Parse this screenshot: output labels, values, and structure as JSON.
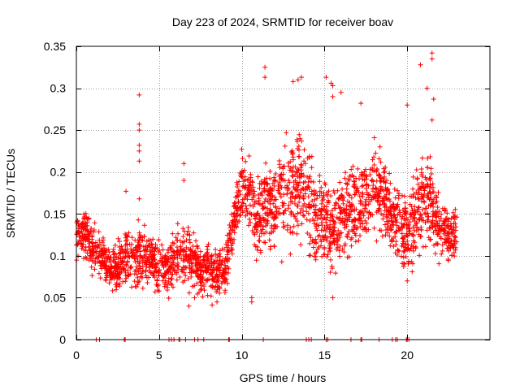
{
  "chart_data": {
    "type": "scatter",
    "title": "Day 223 of 2024, SRMTID for receiver boav",
    "xlabel": "GPS time / hours",
    "ylabel": "SRMTID / TECUs",
    "xlim": [
      0,
      25
    ],
    "ylim": [
      0,
      0.35
    ],
    "grid": true,
    "marker": "+",
    "color": "#ff0000",
    "xticks": [
      {
        "value": 0,
        "label": "0"
      },
      {
        "value": 5,
        "label": "5"
      },
      {
        "value": 10,
        "label": "10"
      },
      {
        "value": 15,
        "label": "15"
      },
      {
        "value": 20,
        "label": "20"
      }
    ],
    "yticks": [
      {
        "value": 0,
        "label": "0"
      },
      {
        "value": 0.05,
        "label": "0.05"
      },
      {
        "value": 0.1,
        "label": "0.1"
      },
      {
        "value": 0.15,
        "label": "0.15"
      },
      {
        "value": 0.2,
        "label": "0.2"
      },
      {
        "value": 0.25,
        "label": "0.25"
      },
      {
        "value": 0.3,
        "label": "0.3"
      },
      {
        "value": 0.35,
        "label": "0.35"
      }
    ],
    "envelope": {
      "x": [
        0,
        0.5,
        1.0,
        1.5,
        2.0,
        2.5,
        3.0,
        3.5,
        4.0,
        4.5,
        5.0,
        5.5,
        6.0,
        6.5,
        7.0,
        7.5,
        8.0,
        8.5,
        9.0,
        9.5,
        10.0,
        10.5,
        11.0,
        11.5,
        12.0,
        12.5,
        13.0,
        13.5,
        14.0,
        14.5,
        15.0,
        15.5,
        16.0,
        16.5,
        17.0,
        17.5,
        18.0,
        18.5,
        19.0,
        19.5,
        20.0,
        20.5,
        21.0,
        21.5,
        22.0,
        22.5,
        23.0
      ],
      "center": [
        0.12,
        0.125,
        0.11,
        0.1,
        0.085,
        0.085,
        0.1,
        0.1,
        0.1,
        0.095,
        0.09,
        0.085,
        0.1,
        0.1,
        0.095,
        0.08,
        0.085,
        0.08,
        0.085,
        0.14,
        0.185,
        0.17,
        0.14,
        0.17,
        0.16,
        0.17,
        0.185,
        0.19,
        0.17,
        0.14,
        0.14,
        0.13,
        0.145,
        0.16,
        0.16,
        0.165,
        0.18,
        0.17,
        0.15,
        0.14,
        0.12,
        0.15,
        0.17,
        0.16,
        0.13,
        0.12,
        0.13
      ],
      "spread": [
        0.02,
        0.02,
        0.025,
        0.025,
        0.02,
        0.02,
        0.03,
        0.03,
        0.03,
        0.025,
        0.025,
        0.025,
        0.03,
        0.025,
        0.03,
        0.025,
        0.025,
        0.025,
        0.025,
        0.025,
        0.03,
        0.03,
        0.04,
        0.045,
        0.04,
        0.045,
        0.05,
        0.05,
        0.045,
        0.04,
        0.04,
        0.04,
        0.04,
        0.04,
        0.04,
        0.04,
        0.04,
        0.04,
        0.035,
        0.035,
        0.035,
        0.04,
        0.045,
        0.04,
        0.03,
        0.025,
        0.02
      ]
    },
    "count": 2600,
    "outliers": [
      {
        "x": 3.8,
        "y": 0.292
      },
      {
        "x": 3.8,
        "y": 0.257
      },
      {
        "x": 3.8,
        "y": 0.25
      },
      {
        "x": 3.8,
        "y": 0.232
      },
      {
        "x": 3.8,
        "y": 0.225
      },
      {
        "x": 3.8,
        "y": 0.213
      },
      {
        "x": 3.0,
        "y": 0.177
      },
      {
        "x": 3.8,
        "y": 0.168
      },
      {
        "x": 6.5,
        "y": 0.21
      },
      {
        "x": 6.5,
        "y": 0.19
      },
      {
        "x": 11.4,
        "y": 0.325
      },
      {
        "x": 11.4,
        "y": 0.313
      },
      {
        "x": 13.1,
        "y": 0.308
      },
      {
        "x": 13.4,
        "y": 0.31
      },
      {
        "x": 13.6,
        "y": 0.313
      },
      {
        "x": 15.1,
        "y": 0.313
      },
      {
        "x": 15.4,
        "y": 0.306
      },
      {
        "x": 15.5,
        "y": 0.303
      },
      {
        "x": 15.5,
        "y": 0.29
      },
      {
        "x": 16.0,
        "y": 0.295
      },
      {
        "x": 17.2,
        "y": 0.282
      },
      {
        "x": 20.0,
        "y": 0.28
      },
      {
        "x": 20.8,
        "y": 0.328
      },
      {
        "x": 21.2,
        "y": 0.3
      },
      {
        "x": 21.5,
        "y": 0.342
      },
      {
        "x": 21.5,
        "y": 0.335
      },
      {
        "x": 21.6,
        "y": 0.287
      },
      {
        "x": 21.5,
        "y": 0.262
      },
      {
        "x": 10.6,
        "y": 0.045
      },
      {
        "x": 10.6,
        "y": 0.05
      },
      {
        "x": 15.5,
        "y": 0.05
      },
      {
        "x": 6.8,
        "y": 0.04
      },
      {
        "x": 20.0,
        "y": 0.07
      },
      {
        "x": 8.5,
        "y": 0.045
      }
    ],
    "zero_points": [
      1.2,
      1.4,
      2.9,
      2.95,
      5.6,
      5.75,
      5.9,
      6.2,
      6.25,
      6.6,
      7.15,
      7.35,
      7.7,
      9.2,
      9.25,
      11.3,
      13.9,
      14.05,
      14.2,
      15.1,
      15.2,
      16.6,
      17.2,
      17.25,
      18.3,
      19.1,
      19.3,
      19.4,
      19.95,
      20.0,
      20.1
    ]
  }
}
